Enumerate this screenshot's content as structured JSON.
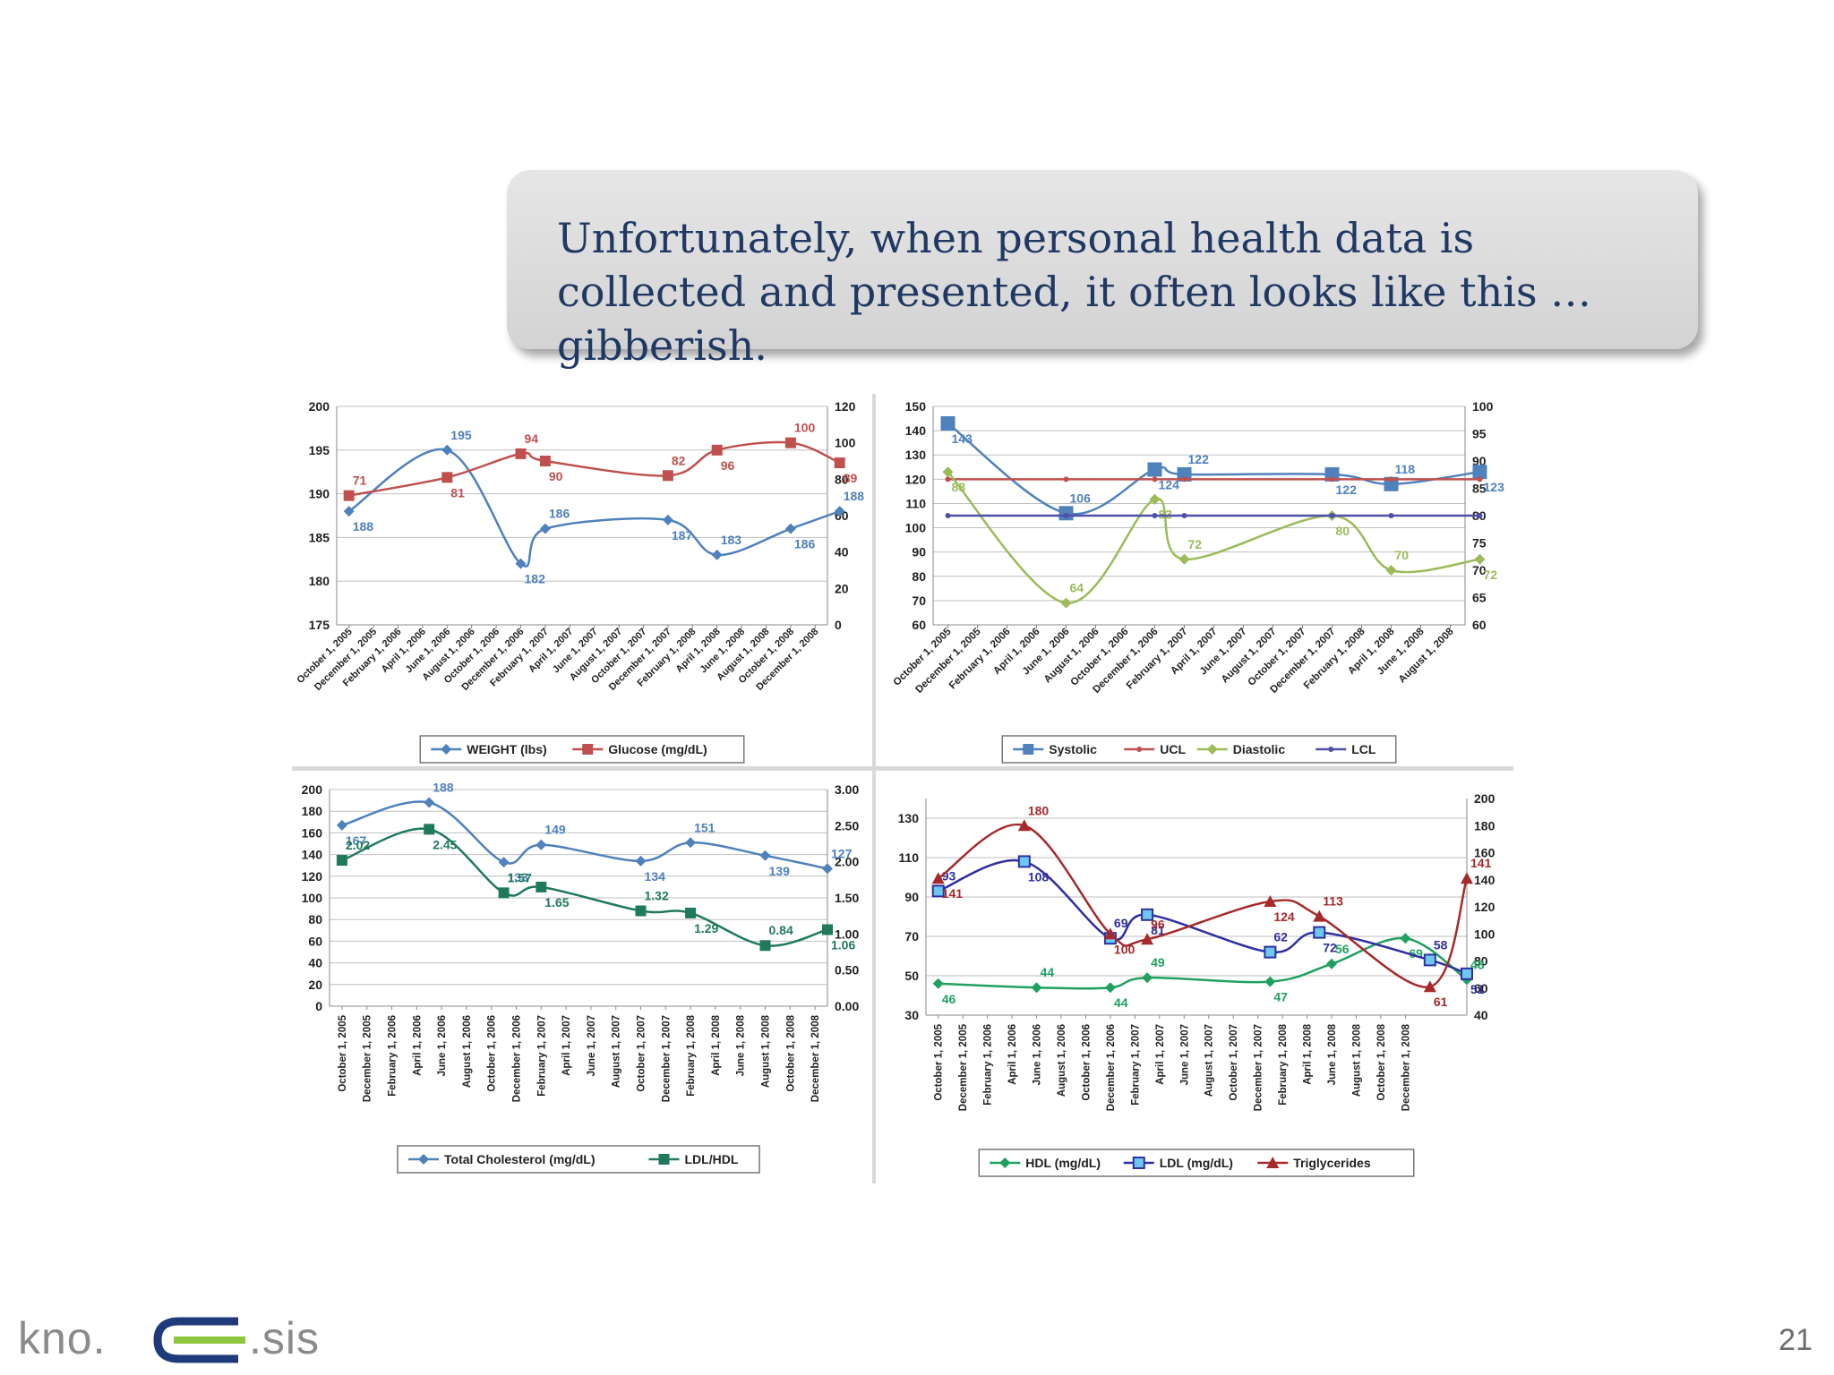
{
  "slide": {
    "headline": "Unfortunately, when personal health data is collected and presented, it often looks like this … gibberish.",
    "page_number": "21",
    "logo_left": "kno.",
    "logo_right": ".sis"
  },
  "chart_data": [
    {
      "id": "weight-glucose",
      "type": "line",
      "categories": [
        "October 1, 2005",
        "December 1, 2005",
        "February 1, 2006",
        "April 1, 2006",
        "June 1, 2006",
        "August 1, 2006",
        "October 1, 2006",
        "December 1, 2006",
        "February 1, 2007",
        "April 1, 2007",
        "June 1, 2007",
        "August 1, 2007",
        "October 1, 2007",
        "December 1, 2007",
        "February 1, 2008",
        "April 1, 2008",
        "June 1, 2008",
        "August 1, 2008",
        "October 1, 2008",
        "December 1, 2008"
      ],
      "ylim_left": [
        175,
        200
      ],
      "yticks_left": [
        175,
        180,
        185,
        190,
        195,
        200
      ],
      "ylim_right": [
        0,
        120
      ],
      "yticks_right": [
        0,
        20,
        40,
        60,
        80,
        100,
        120
      ],
      "grid": true,
      "legend": "bottom",
      "series": [
        {
          "name": "WEIGHT (lbs)",
          "axis": "left",
          "color": "#4f81bd",
          "marker": "diamond",
          "points": [
            [
              0,
              188
            ],
            [
              4,
              195
            ],
            [
              7,
              182
            ],
            [
              8,
              186
            ],
            [
              13,
              187
            ],
            [
              15,
              183
            ],
            [
              18,
              186
            ],
            [
              20,
              188
            ]
          ],
          "labels": [
            [
              0,
              "188"
            ],
            [
              4,
              "195"
            ],
            [
              7,
              "182"
            ],
            [
              8,
              "186"
            ],
            [
              13,
              "187"
            ],
            [
              15,
              "183"
            ],
            [
              18,
              "186"
            ],
            [
              20,
              "188"
            ]
          ]
        },
        {
          "name": "Glucose (mg/dL)",
          "axis": "right",
          "color": "#c0504d",
          "marker": "square",
          "points": [
            [
              0,
              71
            ],
            [
              4,
              81
            ],
            [
              7,
              94
            ],
            [
              8,
              90
            ],
            [
              13,
              82
            ],
            [
              15,
              96
            ],
            [
              18,
              100
            ],
            [
              20,
              89
            ]
          ],
          "labels": [
            [
              0,
              "71"
            ],
            [
              4,
              "81"
            ],
            [
              7,
              "94"
            ],
            [
              8,
              "90"
            ],
            [
              13,
              "82"
            ],
            [
              15,
              "96"
            ],
            [
              18,
              "100"
            ],
            [
              20,
              "89"
            ]
          ]
        }
      ]
    },
    {
      "id": "blood-pressure",
      "type": "line",
      "categories": [
        "October 1, 2005",
        "December 1, 2005",
        "February 1, 2006",
        "April 1, 2006",
        "June 1, 2006",
        "August 1, 2006",
        "October 1, 2006",
        "December 1, 2006",
        "February 1, 2007",
        "April 1, 2007",
        "June 1, 2007",
        "August 1, 2007",
        "October 1, 2007",
        "December 1, 2007",
        "February 1, 2008",
        "April 1, 2008",
        "June 1, 2008",
        "August 1, 2008"
      ],
      "ylim_left": [
        60,
        150
      ],
      "yticks_left": [
        60,
        70,
        80,
        90,
        100,
        110,
        120,
        130,
        140,
        150
      ],
      "ylim_right": [
        60,
        100
      ],
      "yticks_right": [
        60,
        65,
        70,
        75,
        80,
        85,
        90,
        95,
        100
      ],
      "grid": true,
      "legend": "bottom",
      "series": [
        {
          "name": "Systolic",
          "axis": "left",
          "color": "#4f81bd",
          "marker": "bigsquare",
          "points": [
            [
              0,
              143
            ],
            [
              4,
              106
            ],
            [
              7,
              124
            ],
            [
              8,
              122
            ],
            [
              13,
              122
            ],
            [
              15,
              118
            ],
            [
              18,
              123
            ]
          ],
          "labels": [
            [
              0,
              "143"
            ],
            [
              4,
              "106"
            ],
            [
              7,
              "124"
            ],
            [
              8,
              "122"
            ],
            [
              13,
              "122"
            ],
            [
              15,
              "118"
            ],
            [
              18,
              "123"
            ]
          ]
        },
        {
          "name": "UCL",
          "axis": "left",
          "color": "#c0504d",
          "marker": "dot",
          "points": [
            [
              0,
              120
            ],
            [
              4,
              120
            ],
            [
              7,
              120
            ],
            [
              8,
              120
            ],
            [
              13,
              120
            ],
            [
              15,
              120
            ],
            [
              18,
              120
            ]
          ],
          "labels": []
        },
        {
          "name": "Diastolic",
          "axis": "right",
          "color": "#9bbb59",
          "marker": "diamond",
          "points": [
            [
              0,
              88
            ],
            [
              4,
              64
            ],
            [
              7,
              83
            ],
            [
              8,
              72
            ],
            [
              13,
              80
            ],
            [
              15,
              70
            ],
            [
              18,
              72
            ]
          ],
          "labels": [
            [
              0,
              "88"
            ],
            [
              4,
              "64"
            ],
            [
              7,
              "83"
            ],
            [
              8,
              "72"
            ],
            [
              13,
              "80"
            ],
            [
              15,
              "70"
            ],
            [
              18,
              "72"
            ]
          ]
        },
        {
          "name": "LCL",
          "axis": "left",
          "color": "#4f4fa8",
          "marker": "dot",
          "points": [
            [
              0,
              105
            ],
            [
              4,
              105
            ],
            [
              7,
              105
            ],
            [
              8,
              105
            ],
            [
              13,
              105
            ],
            [
              15,
              105
            ],
            [
              18,
              105
            ]
          ],
          "labels": []
        }
      ]
    },
    {
      "id": "cholesterol",
      "type": "line",
      "categories": [
        "October 1, 2005",
        "December 1, 2005",
        "February 1, 2006",
        "April 1, 2006",
        "June 1, 2006",
        "August 1, 2006",
        "October 1, 2006",
        "December 1, 2006",
        "February 1, 2007",
        "April 1, 2007",
        "June 1, 2007",
        "August 1, 2007",
        "October 1, 2007",
        "December 1, 2007",
        "February 1, 2008",
        "April 1, 2008",
        "June 1, 2008",
        "August 1, 2008",
        "October 1, 2008",
        "December 1, 2008"
      ],
      "ylim_left": [
        0,
        200
      ],
      "yticks_left": [
        0,
        20,
        40,
        60,
        80,
        100,
        120,
        140,
        160,
        180,
        200
      ],
      "ylim_right": [
        0,
        3
      ],
      "yticks_right": [
        "0.00",
        "0.50",
        "1.00",
        "1.50",
        "2.00",
        "2.50",
        "3.00"
      ],
      "grid": true,
      "legend": "bottom",
      "series": [
        {
          "name": "Total Cholesterol (mg/dL)",
          "axis": "left",
          "color": "#4f81bd",
          "marker": "diamond",
          "points": [
            [
              0,
              167
            ],
            [
              3.5,
              188
            ],
            [
              6.5,
              133
            ],
            [
              8,
              149
            ],
            [
              12,
              134
            ],
            [
              14,
              151
            ],
            [
              17,
              139
            ],
            [
              19.5,
              127
            ]
          ],
          "labels": [
            [
              0,
              "167"
            ],
            [
              3.5,
              "188"
            ],
            [
              6.5,
              "133"
            ],
            [
              8,
              "149"
            ],
            [
              12,
              "134"
            ],
            [
              14,
              "151"
            ],
            [
              17,
              "139"
            ],
            [
              19.5,
              "127"
            ]
          ]
        },
        {
          "name": "LDL/HDL",
          "axis": "right",
          "color": "#1f7a5a",
          "marker": "square",
          "points": [
            [
              0,
              2.02
            ],
            [
              3.5,
              2.45
            ],
            [
              6.5,
              1.57
            ],
            [
              8,
              1.65
            ],
            [
              12,
              1.32
            ],
            [
              14,
              1.29
            ],
            [
              17,
              0.84
            ],
            [
              19.5,
              1.06
            ]
          ],
          "labels": [
            [
              0,
              "2.02"
            ],
            [
              3.5,
              "2.45"
            ],
            [
              6.5,
              "1.57"
            ],
            [
              8,
              "1.65"
            ],
            [
              12,
              "1.32"
            ],
            [
              14,
              "1.29"
            ],
            [
              17,
              "0.84"
            ],
            [
              19.5,
              "1.06"
            ]
          ]
        }
      ]
    },
    {
      "id": "lipids",
      "type": "line",
      "categories": [
        "October 1, 2005",
        "December 1, 2005",
        "February 1, 2006",
        "April 1, 2006",
        "June 1, 2006",
        "August 1, 2006",
        "October 1, 2006",
        "December 1, 2006",
        "February 1, 2007",
        "April 1, 2007",
        "June 1, 2007",
        "August 1, 2007",
        "October 1, 2007",
        "December 1, 2007",
        "February 1, 2008",
        "April 1, 2008",
        "June 1, 2008",
        "August 1, 2008",
        "October 1, 2008",
        "December 1, 2008"
      ],
      "ylim_left": [
        30,
        140
      ],
      "yticks_left": [
        30,
        50,
        70,
        90,
        110,
        130
      ],
      "ylim_right": [
        40,
        200
      ],
      "yticks_right": [
        40,
        60,
        80,
        100,
        120,
        140,
        160,
        180,
        200
      ],
      "grid": true,
      "legend": "bottom",
      "series": [
        {
          "name": "HDL (mg/dL)",
          "axis": "left",
          "color": "#20a060",
          "marker": "diamond",
          "points": [
            [
              0,
              46
            ],
            [
              4,
              44
            ],
            [
              7,
              44
            ],
            [
              8.5,
              49
            ],
            [
              13.5,
              47
            ],
            [
              16,
              56
            ],
            [
              19,
              69
            ],
            [
              21.5,
              48
            ]
          ],
          "labels": [
            [
              0,
              "46"
            ],
            [
              4,
              "44"
            ],
            [
              7,
              "44"
            ],
            [
              8.5,
              "49"
            ],
            [
              13.5,
              "47"
            ],
            [
              16,
              "56"
            ],
            [
              19,
              "69"
            ],
            [
              21.5,
              "48"
            ]
          ]
        },
        {
          "name": "LDL (mg/dL)",
          "axis": "left",
          "color": "#2f2fa0",
          "marker": "hsquare",
          "points": [
            [
              0,
              93
            ],
            [
              3.5,
              108
            ],
            [
              7,
              69
            ],
            [
              8.5,
              81
            ],
            [
              13.5,
              62
            ],
            [
              15.5,
              72
            ],
            [
              20,
              58
            ],
            [
              21.5,
              51
            ]
          ],
          "labels": [
            [
              0,
              "93"
            ],
            [
              3.5,
              "108"
            ],
            [
              7,
              "69"
            ],
            [
              8.5,
              "81"
            ],
            [
              13.5,
              "62"
            ],
            [
              15.5,
              "72"
            ],
            [
              20,
              "58"
            ],
            [
              21.5,
              "51"
            ]
          ]
        },
        {
          "name": "Triglycerides",
          "axis": "right",
          "color": "#a52a2a",
          "marker": "triangle",
          "points": [
            [
              0,
              141
            ],
            [
              3.5,
              180
            ],
            [
              7,
              100
            ],
            [
              8.5,
              96
            ],
            [
              13.5,
              124
            ],
            [
              15.5,
              113
            ],
            [
              20,
              61
            ],
            [
              21.5,
              141
            ]
          ],
          "labels": [
            [
              0,
              "141"
            ],
            [
              3.5,
              "180"
            ],
            [
              7,
              "100"
            ],
            [
              8.5,
              "96"
            ],
            [
              13.5,
              "124"
            ],
            [
              15.5,
              "113"
            ],
            [
              20,
              "61"
            ],
            [
              21.5,
              "141"
            ]
          ]
        }
      ]
    }
  ]
}
